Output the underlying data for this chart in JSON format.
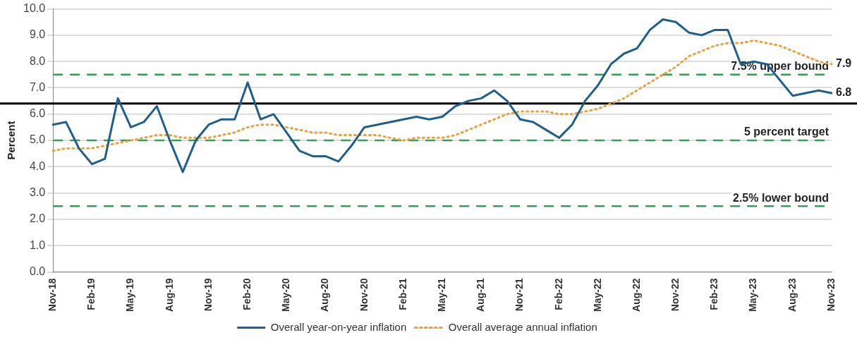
{
  "chart_data": {
    "type": "line",
    "ylabel": "Percent",
    "categories": [
      "Nov-18",
      null,
      null,
      "Feb-19",
      null,
      null,
      "May-19",
      null,
      null,
      "Aug-19",
      null,
      null,
      "Nov-19",
      null,
      null,
      "Feb-20",
      null,
      null,
      "May-20",
      null,
      null,
      "Aug-20",
      null,
      null,
      "Nov-20",
      null,
      null,
      "Feb-21",
      null,
      null,
      "May-21",
      null,
      null,
      "Aug-21",
      null,
      null,
      "Nov-21",
      null,
      null,
      "Feb-22",
      null,
      null,
      "May-22",
      null,
      null,
      "Aug-22",
      null,
      null,
      "Nov-22",
      null,
      null,
      "Feb-23",
      null,
      null,
      "May-23",
      null,
      null,
      "Aug-23",
      null,
      null,
      "Nov-23"
    ],
    "series": [
      {
        "name": "Overall year-on-year inflation",
        "color": "#1f5f8b",
        "line_style": "solid",
        "values": [
          5.6,
          5.7,
          4.7,
          4.1,
          4.3,
          6.6,
          5.5,
          5.7,
          6.3,
          5.0,
          3.8,
          5.0,
          5.6,
          5.8,
          5.8,
          7.2,
          5.8,
          6.0,
          5.3,
          4.6,
          4.4,
          4.4,
          4.2,
          4.8,
          5.5,
          5.6,
          5.7,
          5.8,
          5.9,
          5.8,
          5.9,
          6.3,
          6.5,
          6.6,
          6.9,
          6.5,
          5.8,
          5.7,
          5.4,
          5.1,
          5.6,
          6.5,
          7.1,
          7.9,
          8.3,
          8.5,
          9.2,
          9.6,
          9.5,
          9.1,
          9.0,
          9.2,
          9.2,
          7.9,
          8.0,
          7.9,
          7.3,
          6.7,
          6.8,
          6.9,
          6.8
        ]
      },
      {
        "name": "Overall average annual inflation",
        "color": "#e8a040",
        "line_style": "dotted",
        "values": [
          4.6,
          4.7,
          4.7,
          4.7,
          4.8,
          4.9,
          5.0,
          5.1,
          5.2,
          5.2,
          5.1,
          5.1,
          5.1,
          5.2,
          5.3,
          5.5,
          5.6,
          5.6,
          5.5,
          5.4,
          5.3,
          5.3,
          5.2,
          5.2,
          5.2,
          5.2,
          5.1,
          5.0,
          5.1,
          5.1,
          5.1,
          5.2,
          5.4,
          5.6,
          5.8,
          6.0,
          6.1,
          6.1,
          6.1,
          6.0,
          6.0,
          6.1,
          6.2,
          6.4,
          6.6,
          6.9,
          7.2,
          7.5,
          7.8,
          8.2,
          8.4,
          8.6,
          8.7,
          8.7,
          8.8,
          8.7,
          8.6,
          8.4,
          8.2,
          8.0,
          7.9
        ]
      }
    ],
    "ylim": [
      0,
      10
    ],
    "yticks": [
      {
        "value": 0,
        "label": "0.0"
      },
      {
        "value": 1,
        "label": "1.0"
      },
      {
        "value": 2,
        "label": "2.0"
      },
      {
        "value": 3,
        "label": "3.0"
      },
      {
        "value": 4,
        "label": "4.0"
      },
      {
        "value": 5,
        "label": "5.0"
      },
      {
        "value": 6,
        "label": "6.0"
      },
      {
        "value": 7,
        "label": "7.0"
      },
      {
        "value": 8,
        "label": "8.0"
      },
      {
        "value": 9,
        "label": "9.0"
      },
      {
        "value": 10,
        "label": "10.0"
      }
    ],
    "ref_lines": [
      {
        "axis": "y",
        "value": 7.5,
        "label": "7.5% upper bound",
        "color": "#3a9a5a",
        "line_style": "dashed"
      },
      {
        "axis": "y",
        "value": 5,
        "label": "5 percent target",
        "color": "#3a9a5a",
        "line_style": "dashed"
      },
      {
        "axis": "y",
        "value": 2.5,
        "label": "2.5% lower bound",
        "color": "#3a9a5a",
        "line_style": "dashed"
      },
      {
        "axis": "y",
        "value": 6.4,
        "color": "#000000",
        "line_style": "solid"
      }
    ],
    "annotations": [
      {
        "text": "7.9",
        "x": "Nov-23",
        "y": 7.9
      },
      {
        "text": "6.8",
        "x": "Nov-23",
        "y": 6.8
      }
    ],
    "grid": "y",
    "legend": "bottom",
    "marker": "none"
  }
}
